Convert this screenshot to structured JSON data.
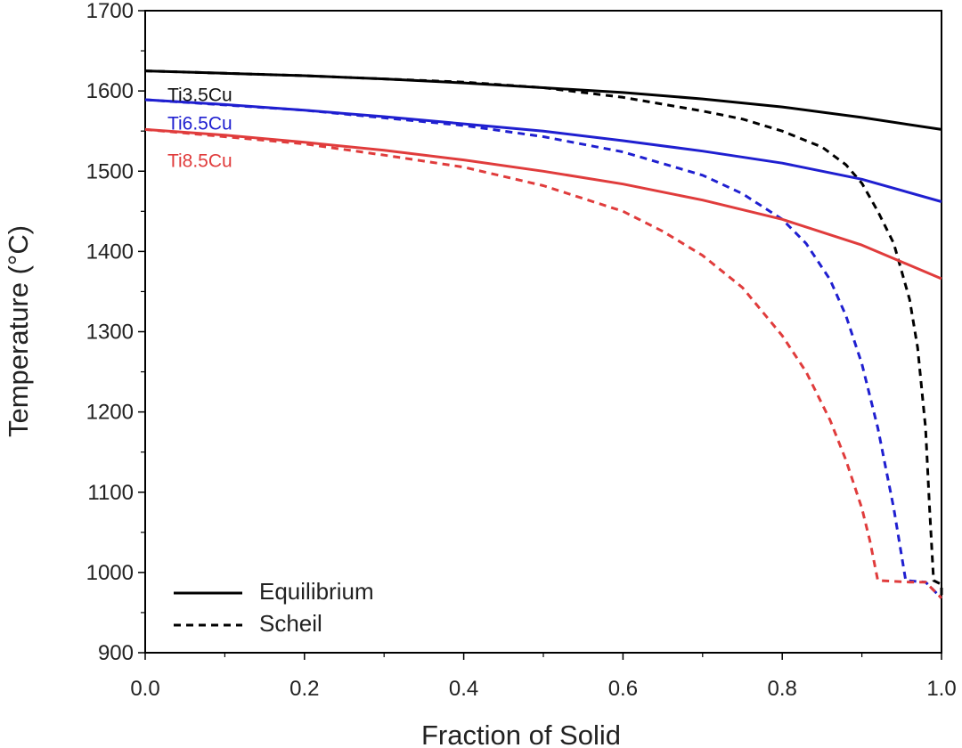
{
  "chart_data": {
    "type": "line",
    "title": "",
    "xlabel": "Fraction of Solid",
    "ylabel": "Temperature (°C)",
    "xlim": [
      0,
      1.0
    ],
    "ylim": [
      900,
      1700
    ],
    "x_ticks": [
      "0.0",
      "0.2",
      "0.4",
      "0.6",
      "0.8",
      "1.0"
    ],
    "y_ticks": [
      "900",
      "1000",
      "1100",
      "1200",
      "1300",
      "1400",
      "1500",
      "1600",
      "1700"
    ],
    "grid": false,
    "legend": {
      "placement": "bottom-left",
      "entries": [
        {
          "label": "Equilibrium",
          "style": "solid"
        },
        {
          "label": "Scheil",
          "style": "dashed"
        }
      ]
    },
    "series": [
      {
        "name": "Ti3.5Cu",
        "model": "Equilibrium",
        "color": "#000000",
        "style": "solid",
        "points": [
          [
            0,
            1625
          ],
          [
            0.1,
            1622
          ],
          [
            0.2,
            1619
          ],
          [
            0.3,
            1615
          ],
          [
            0.4,
            1610
          ],
          [
            0.5,
            1604
          ],
          [
            0.6,
            1598
          ],
          [
            0.7,
            1590
          ],
          [
            0.8,
            1580
          ],
          [
            0.9,
            1567
          ],
          [
            1.0,
            1552
          ]
        ]
      },
      {
        "name": "Ti3.5Cu",
        "model": "Scheil",
        "color": "#000000",
        "style": "dashed",
        "points": [
          [
            0,
            1625
          ],
          [
            0.2,
            1619
          ],
          [
            0.4,
            1611
          ],
          [
            0.5,
            1604
          ],
          [
            0.6,
            1592
          ],
          [
            0.7,
            1575
          ],
          [
            0.75,
            1565
          ],
          [
            0.8,
            1550
          ],
          [
            0.85,
            1530
          ],
          [
            0.88,
            1508
          ],
          [
            0.9,
            1485
          ],
          [
            0.92,
            1450
          ],
          [
            0.94,
            1410
          ],
          [
            0.96,
            1340
          ],
          [
            0.97,
            1280
          ],
          [
            0.98,
            1180
          ],
          [
            0.985,
            1080
          ],
          [
            0.99,
            990
          ],
          [
            1.0,
            985
          ],
          [
            1.0,
            970
          ]
        ]
      },
      {
        "name": "Ti6.5Cu",
        "model": "Equilibrium",
        "color": "#1f1fd0",
        "style": "solid",
        "points": [
          [
            0,
            1589
          ],
          [
            0.1,
            1583
          ],
          [
            0.2,
            1576
          ],
          [
            0.3,
            1568
          ],
          [
            0.4,
            1559
          ],
          [
            0.5,
            1550
          ],
          [
            0.6,
            1538
          ],
          [
            0.7,
            1525
          ],
          [
            0.8,
            1510
          ],
          [
            0.9,
            1490
          ],
          [
            1.0,
            1462
          ]
        ]
      },
      {
        "name": "Ti6.5Cu",
        "model": "Scheil",
        "color": "#1f1fd0",
        "style": "dashed",
        "points": [
          [
            0,
            1589
          ],
          [
            0.2,
            1576
          ],
          [
            0.4,
            1557
          ],
          [
            0.5,
            1543
          ],
          [
            0.6,
            1524
          ],
          [
            0.7,
            1495
          ],
          [
            0.75,
            1472
          ],
          [
            0.8,
            1440
          ],
          [
            0.83,
            1410
          ],
          [
            0.86,
            1365
          ],
          [
            0.88,
            1320
          ],
          [
            0.9,
            1260
          ],
          [
            0.92,
            1180
          ],
          [
            0.94,
            1080
          ],
          [
            0.955,
            990
          ],
          [
            0.98,
            988
          ],
          [
            1.0,
            968
          ]
        ]
      },
      {
        "name": "Ti8.5Cu",
        "model": "Equilibrium",
        "color": "#e03c3c",
        "style": "solid",
        "points": [
          [
            0,
            1552
          ],
          [
            0.1,
            1545
          ],
          [
            0.2,
            1536
          ],
          [
            0.3,
            1526
          ],
          [
            0.4,
            1514
          ],
          [
            0.5,
            1500
          ],
          [
            0.6,
            1484
          ],
          [
            0.7,
            1464
          ],
          [
            0.8,
            1440
          ],
          [
            0.9,
            1408
          ],
          [
            1.0,
            1366
          ]
        ]
      },
      {
        "name": "Ti8.5Cu",
        "model": "Scheil",
        "color": "#e03c3c",
        "style": "dashed",
        "points": [
          [
            0,
            1552
          ],
          [
            0.2,
            1534
          ],
          [
            0.3,
            1520
          ],
          [
            0.4,
            1505
          ],
          [
            0.5,
            1482
          ],
          [
            0.6,
            1450
          ],
          [
            0.65,
            1425
          ],
          [
            0.7,
            1395
          ],
          [
            0.75,
            1355
          ],
          [
            0.8,
            1295
          ],
          [
            0.83,
            1250
          ],
          [
            0.86,
            1190
          ],
          [
            0.88,
            1140
          ],
          [
            0.9,
            1080
          ],
          [
            0.91,
            1040
          ],
          [
            0.92,
            990
          ],
          [
            0.96,
            988
          ],
          [
            0.98,
            988
          ],
          [
            1.0,
            968
          ]
        ]
      }
    ],
    "series_labels": [
      {
        "text": "Ti3.5Cu",
        "color": "#111111",
        "x": 0.01,
        "y": 1596
      },
      {
        "text": "Ti6.5Cu",
        "color": "#1f1fd0",
        "x": 0.01,
        "y": 1561
      },
      {
        "text": "Ti8.5Cu",
        "color": "#e03c3c",
        "x": 0.01,
        "y": 1514
      }
    ]
  }
}
